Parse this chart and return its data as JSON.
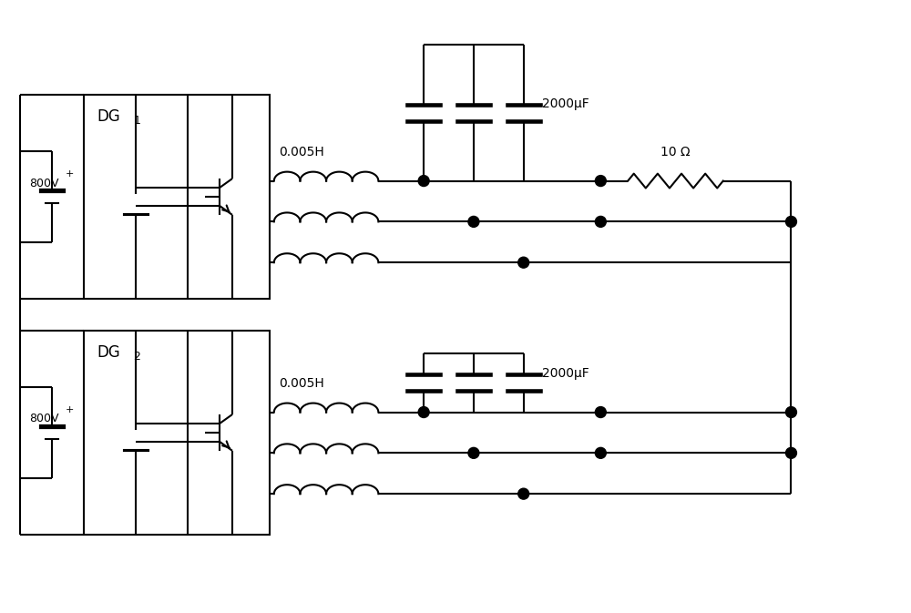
{
  "bg_color": "#ffffff",
  "line_color": "#000000",
  "lw": 1.5,
  "fig_width": 10.0,
  "fig_height": 6.73,
  "dpi": 100,
  "label_800V": "800V",
  "label_inductance": "0.005H",
  "label_capacitance": "2000μF",
  "label_resistance": "10 Ω",
  "label_DG1": "DG",
  "label_DG1_sub": "1",
  "label_DG2": "DG",
  "label_DG2_sub": "2"
}
